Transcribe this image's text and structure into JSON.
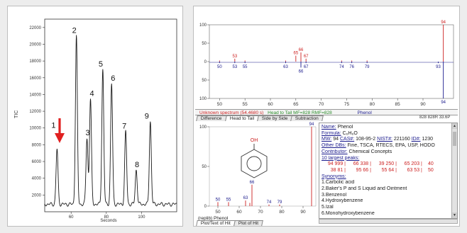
{
  "chromatogram": {
    "y_axis_label": "TIC",
    "x_axis_label": "Seconds",
    "y_ticks": [
      "22000",
      "20000",
      "18000",
      "16000",
      "14000",
      "12000",
      "10000",
      "8000",
      "6000",
      "4000",
      "2000"
    ],
    "x_ticks": [
      "60",
      "80",
      "100"
    ],
    "peak_labels": [
      "1",
      "2",
      "3",
      "4",
      "5",
      "6",
      "7",
      "8",
      "9"
    ],
    "arrow_color": "#e02020"
  },
  "chart_data": [
    {
      "type": "line",
      "xlabel": "Seconds",
      "ylabel": "TIC",
      "ylim": [
        0,
        23000
      ],
      "xlim": [
        45,
        120
      ],
      "peaks": [
        {
          "label": "1",
          "x": 52,
          "y": 7500
        },
        {
          "label": "2",
          "x": 63,
          "y": 21000
        },
        {
          "label": "3",
          "x": 69,
          "y": 8800
        },
        {
          "label": "4",
          "x": 71,
          "y": 13500
        },
        {
          "label": "5",
          "x": 78,
          "y": 17000
        },
        {
          "label": "6",
          "x": 83,
          "y": 15300
        },
        {
          "label": "7",
          "x": 91,
          "y": 9600
        },
        {
          "label": "8",
          "x": 97,
          "y": 5000
        },
        {
          "label": "9",
          "x": 105,
          "y": 10800
        }
      ]
    },
    {
      "type": "bar",
      "title": "Head to Tail",
      "ylim": [
        -100,
        100
      ],
      "xlim": [
        48,
        96
      ],
      "y_ticks": [
        "100",
        "50",
        "0",
        "50",
        "100"
      ],
      "x_ticks": [
        "50",
        "55",
        "60",
        "65",
        "70",
        "75",
        "80",
        "85",
        "90"
      ],
      "series": [
        {
          "name": "Unknown spectrum",
          "x": [
            50,
            53,
            55,
            63,
            65,
            66,
            67,
            74,
            76,
            79,
            94
          ],
          "values": [
            3,
            8,
            3,
            3,
            16,
            25,
            8,
            3,
            3,
            3,
            100
          ],
          "labels": [
            "",
            "53",
            "",
            "",
            "65",
            "66",
            "67",
            "",
            "",
            "",
            "94"
          ]
        },
        {
          "name": "Phenol",
          "x": [
            50,
            53,
            55,
            63,
            66,
            67,
            74,
            76,
            79,
            93,
            94
          ],
          "values": [
            -4,
            -4,
            -4,
            -4,
            -16,
            -4,
            -4,
            -4,
            -4,
            -4,
            -100
          ],
          "labels": [
            "50",
            "53",
            "55",
            "63",
            "66",
            "67",
            "74",
            "76",
            "79",
            "93",
            "94"
          ]
        }
      ]
    },
    {
      "type": "bar",
      "title": "(replib) Phenol",
      "ylim": [
        0,
        100
      ],
      "xlim": [
        46,
        96
      ],
      "y_ticks": [
        "100",
        "50",
        "0"
      ],
      "x_ticks": [
        "50",
        "60",
        "70",
        "80",
        "90"
      ],
      "series": [
        {
          "name": "Phenol",
          "x": [
            50,
            55,
            63,
            65,
            66,
            74,
            79,
            94
          ],
          "values": [
            5,
            5,
            7,
            4,
            27,
            2,
            2,
            100
          ],
          "labels": [
            "50",
            "55",
            "63",
            "",
            "66",
            "74",
            "79",
            "94"
          ]
        }
      ]
    }
  ],
  "spectrum": {
    "status_left": "Unknown spectrum (54.4680 s)",
    "status_mid": "Head to Tail MF=828 RMF=828",
    "status_right_name": "Phenol",
    "status_score": "828 828R 33.6P",
    "tabs": [
      "Difference",
      "Head to Tail",
      "Side by Side",
      "Subtraction"
    ],
    "bottom_tabs": [
      "Plot/Text of Hit",
      "Plot of Hit"
    ],
    "structure_label": "OH",
    "lib_title": "(replib) Phenol"
  },
  "compound_info": {
    "name_label": "Name:",
    "name": "Phenol",
    "formula_label": "Formula:",
    "formula": "C₆H₆O",
    "mw_label": "MW:",
    "mw": "94",
    "cas_label": "CAS#:",
    "cas": "108-95-2",
    "nist_label": "NIST#:",
    "nist": "221160",
    "id_label": "ID#:",
    "id": "1230",
    "other_dbs_label": "Other DBs:",
    "other_dbs": "Fine, TSCA, RTECS, EPA, USP, HODO",
    "contributor_label": "Contributor:",
    "contributor": "Chemical Concepts",
    "peaks_label": "10 largest peaks:",
    "peaks_row1": [
      "94 999 |",
      "66 338 |",
      "39 250 |",
      "65 203 |",
      "40"
    ],
    "peaks_row2": [
      "38 81 |",
      "95 66 |",
      "55 64 |",
      "63 53 |",
      "50"
    ],
    "synonyms_label": "Synonyms:",
    "synonyms": [
      "1.Carbolic acid",
      "2.Baker's P and S Liquid and Ointment",
      "3.Benzenol",
      "4.Hydroxybenzene",
      "5.Izal",
      "6.Monohydroxybenzene"
    ]
  }
}
